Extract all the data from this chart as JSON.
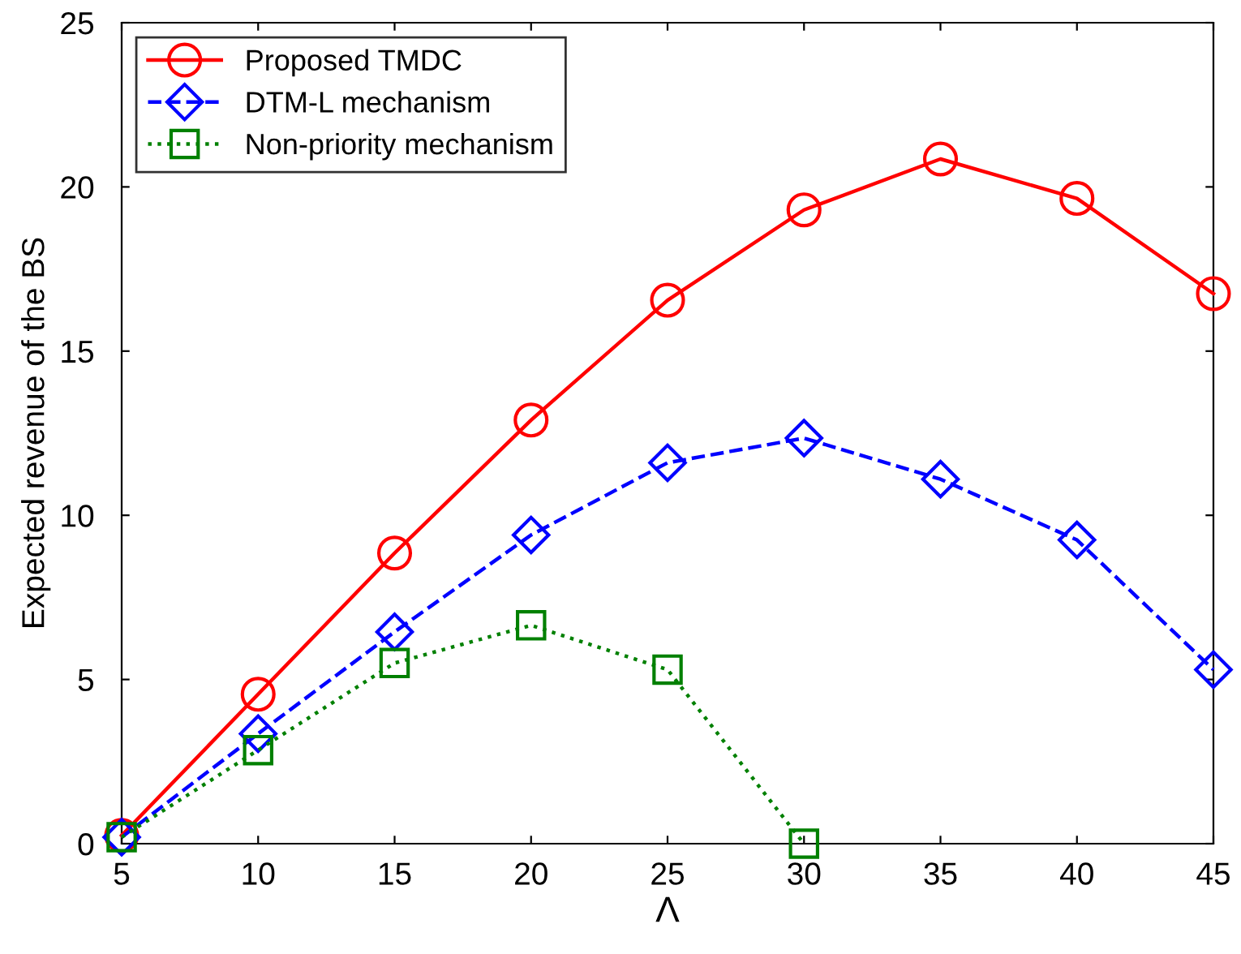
{
  "chart_data": {
    "type": "line",
    "xlabel": "Λ",
    "ylabel": "Expected revenue of the BS",
    "x": [
      5,
      10,
      15,
      20,
      25,
      30,
      35,
      40,
      45
    ],
    "xlim": [
      5,
      45
    ],
    "xticks": [
      5,
      10,
      15,
      20,
      25,
      30,
      35,
      40,
      45
    ],
    "ylim": [
      0,
      25
    ],
    "yticks": [
      0,
      5,
      10,
      15,
      20,
      25
    ],
    "grid": false,
    "legend": "top left",
    "series": [
      {
        "name": "Proposed TMDC",
        "color": "#ff0000",
        "marker": "circle",
        "line_style": "solid",
        "values": [
          0.25,
          4.55,
          8.85,
          12.9,
          16.55,
          19.3,
          20.85,
          19.65,
          16.75
        ]
      },
      {
        "name": "DTM-L mechanism",
        "color": "#0000ff",
        "marker": "diamond",
        "line_style": "dashed",
        "values": [
          0.2,
          3.35,
          6.45,
          9.4,
          11.6,
          12.35,
          11.1,
          9.25,
          5.3
        ]
      },
      {
        "name": "Non-priority mechanism",
        "color": "#008000",
        "marker": "square",
        "line_style": "dotted",
        "x": [
          5,
          10,
          15,
          20,
          25,
          30
        ],
        "values": [
          0.2,
          2.85,
          5.5,
          6.65,
          5.3,
          0
        ]
      }
    ]
  }
}
